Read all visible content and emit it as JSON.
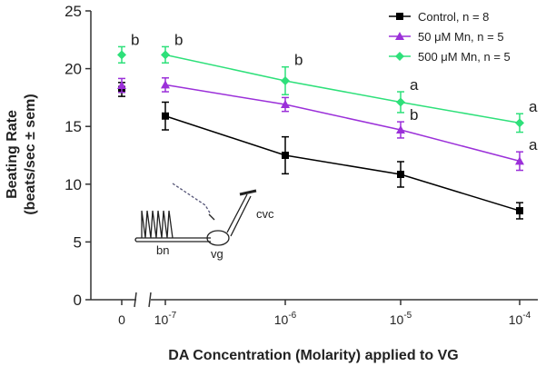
{
  "chart_data": {
    "type": "line",
    "x_label": "DA Concentration (Molarity) applied to VG",
    "y_label": [
      "Beating Rate",
      "(beats/sec ± sem)"
    ],
    "categories": [
      {
        "base": "0"
      },
      {
        "base": "10",
        "exponent": "-7"
      },
      {
        "base": "10",
        "exponent": "-6"
      },
      {
        "base": "10",
        "exponent": "-5"
      },
      {
        "base": "10",
        "exponent": "-4"
      }
    ],
    "axis_break": true,
    "ylim": [
      0,
      25
    ],
    "yticks": [
      0,
      5,
      10,
      15,
      20,
      25
    ],
    "legend": "top-right",
    "series": [
      {
        "name": "Control, n = 8",
        "color": "#000000",
        "marker": "square",
        "values": [
          18.2,
          15.9,
          12.5,
          10.85,
          7.7
        ],
        "errors": [
          0.6,
          1.2,
          1.6,
          1.1,
          0.7
        ]
      },
      {
        "name": "50 μM Mn, n = 5",
        "color": "#9b30d9",
        "marker": "triangle",
        "values": [
          18.55,
          18.6,
          16.9,
          14.7,
          12.0
        ],
        "errors": [
          0.6,
          0.6,
          0.6,
          0.7,
          0.8
        ],
        "letters": [
          null,
          null,
          null,
          "b",
          "a"
        ]
      },
      {
        "name": "500 μM Mn, n = 5",
        "color": "#2ee07a",
        "marker": "diamond",
        "values": [
          21.2,
          21.2,
          18.95,
          17.1,
          15.3
        ],
        "errors": [
          0.7,
          0.7,
          1.2,
          0.9,
          0.8
        ],
        "letters": [
          "b",
          "b",
          "b",
          "a",
          "a"
        ]
      }
    ]
  },
  "inset": {
    "labels": [
      "bn",
      "vg",
      "cvc"
    ]
  }
}
